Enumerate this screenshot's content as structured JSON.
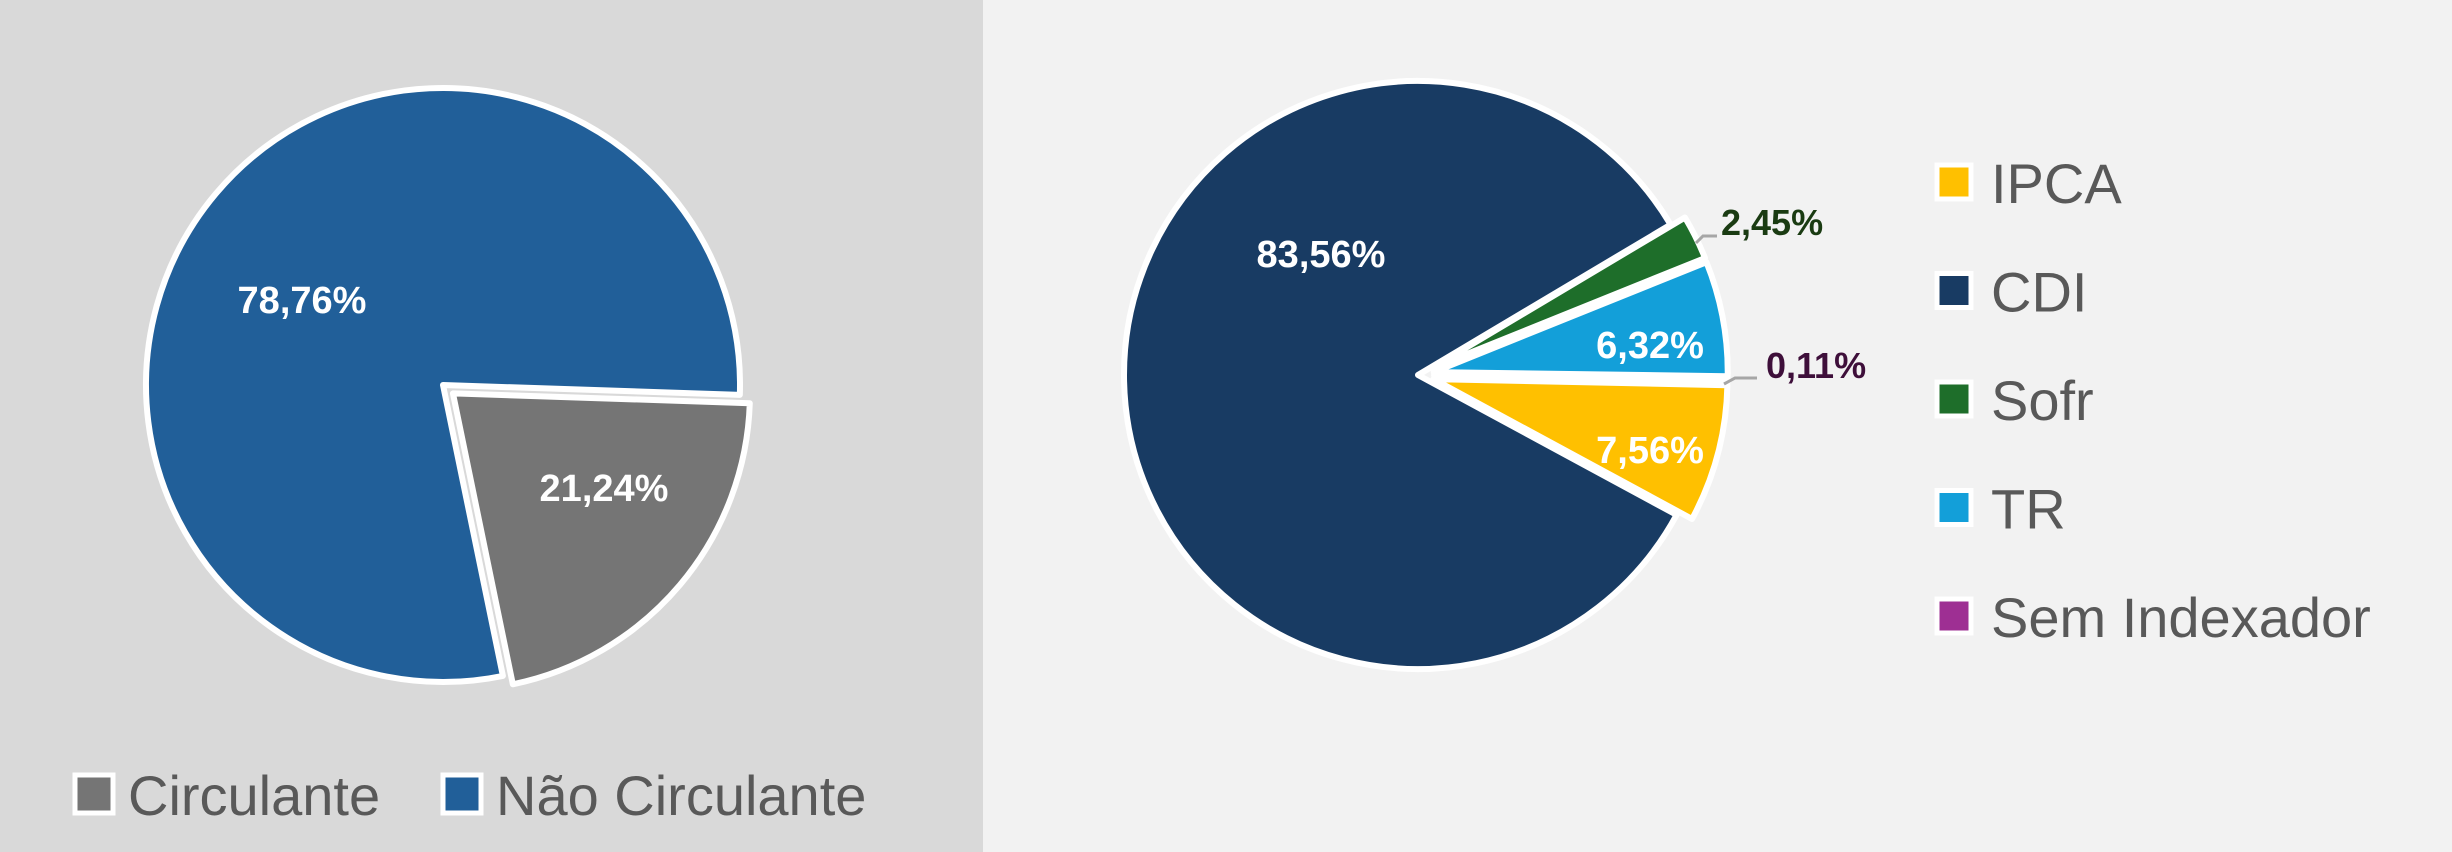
{
  "chart_data": [
    {
      "type": "pie",
      "title": "",
      "slices": [
        {
          "label": "Circulante",
          "value": 21.24,
          "value_label": "21,24%",
          "color": "#757575"
        },
        {
          "label": "Não Circulante",
          "value": 78.76,
          "value_label": "78,76%",
          "color": "#215f99"
        }
      ],
      "legend": {
        "position": "bottom",
        "entries": [
          "Circulante",
          "Não Circulante"
        ]
      },
      "background": "#d9d9d9"
    },
    {
      "type": "pie",
      "title": "",
      "slices": [
        {
          "label": "IPCA",
          "value": 7.56,
          "value_label": "7,56%",
          "color": "#ffc000"
        },
        {
          "label": "CDI",
          "value": 83.56,
          "value_label": "83,56%",
          "color": "#183b63"
        },
        {
          "label": "Sofr",
          "value": 2.45,
          "value_label": "2,45%",
          "color": "#1e6e2a"
        },
        {
          "label": "TR",
          "value": 6.32,
          "value_label": "6,32%",
          "color": "#139fd9"
        },
        {
          "label": "Sem Indexador",
          "value": 0.11,
          "value_label": "0,11%",
          "color": "#9e2f93"
        }
      ],
      "legend": {
        "position": "right",
        "entries": [
          "IPCA",
          "CDI",
          "Sofr",
          "TR",
          "Sem Indexador"
        ]
      },
      "callout_colors": {
        "Sofr": "#1a3b12",
        "Sem Indexador": "#3e0f3a"
      },
      "background": "#f2f2f2"
    }
  ]
}
